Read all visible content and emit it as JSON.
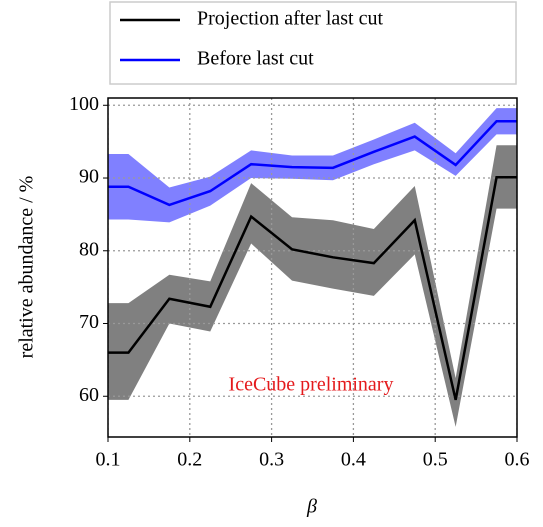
{
  "chart_data": {
    "type": "line",
    "x": [
      0.1,
      0.125,
      0.175,
      0.225,
      0.275,
      0.325,
      0.375,
      0.425,
      0.475,
      0.525,
      0.575,
      0.6
    ],
    "series": [
      {
        "name": "Projection after last cut",
        "color": "#000000",
        "band_color": "#808080",
        "values": [
          66,
          66,
          73.4,
          72.3,
          84.7,
          80.2,
          79.1,
          78.3,
          84.2,
          59.5,
          90.1,
          90.1
        ],
        "upper": [
          72.8,
          72.8,
          76.7,
          75.8,
          89.3,
          84.6,
          84.2,
          83,
          88.9,
          62.5,
          94.5,
          94.5
        ],
        "lower": [
          59.5,
          59.5,
          70,
          68.9,
          81,
          75.9,
          74.8,
          73.8,
          79.5,
          55.8,
          85.8,
          85.8
        ]
      },
      {
        "name": "Before last cut",
        "color": "#0000ff",
        "band_color": "#8080ff",
        "values": [
          88.8,
          88.8,
          86.3,
          88.2,
          91.9,
          91.5,
          91.4,
          93.6,
          95.7,
          91.8,
          97.8,
          97.8
        ],
        "upper": [
          93.3,
          93.3,
          88.7,
          90.2,
          93.8,
          93.1,
          93.1,
          95.3,
          97.6,
          93.4,
          99.6,
          99.6
        ],
        "lower": [
          84.3,
          84.3,
          83.9,
          86.2,
          90,
          89.9,
          89.7,
          91.9,
          93.8,
          90.3,
          96,
          96
        ]
      }
    ],
    "xlabel": "β",
    "ylabel": "relative abundance / %",
    "annotation": "IceCube preliminary",
    "annotation_color": "#e41a1c",
    "xlim": [
      0.1,
      0.6
    ],
    "xticks": [
      0.1,
      0.2,
      0.3,
      0.4,
      0.5,
      0.6
    ],
    "ylim": [
      54.4,
      101
    ],
    "yticks": [
      60,
      70,
      80,
      90,
      100
    ],
    "grid": true,
    "legend": "top"
  }
}
